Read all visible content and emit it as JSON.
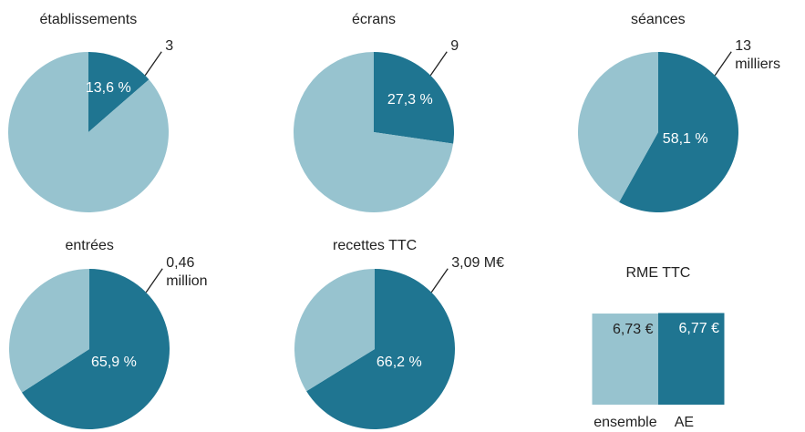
{
  "chart_data": [
    {
      "type": "pie",
      "title": "établissements",
      "values": [
        13.6,
        86.4
      ],
      "value_labels": [
        "13,6 %",
        null
      ],
      "colors": [
        "#1f7591",
        "#97c3cf"
      ],
      "annotation": "3"
    },
    {
      "type": "pie",
      "title": "écrans",
      "values": [
        27.3,
        72.7
      ],
      "value_labels": [
        "27,3 %",
        null
      ],
      "colors": [
        "#1f7591",
        "#97c3cf"
      ],
      "annotation": "9"
    },
    {
      "type": "pie",
      "title": "séances",
      "values": [
        58.1,
        41.9
      ],
      "value_labels": [
        "58,1 %",
        null
      ],
      "colors": [
        "#1f7591",
        "#97c3cf"
      ],
      "annotation": "13\nmilliers"
    },
    {
      "type": "pie",
      "title": "entrées",
      "values": [
        65.9,
        34.1
      ],
      "value_labels": [
        "65,9 %",
        null
      ],
      "colors": [
        "#1f7591",
        "#97c3cf"
      ],
      "annotation": "0,46\nmillion"
    },
    {
      "type": "pie",
      "title": "recettes TTC",
      "values": [
        66.2,
        33.8
      ],
      "value_labels": [
        "66,2 %",
        null
      ],
      "colors": [
        "#1f7591",
        "#97c3cf"
      ],
      "annotation": "3,09 M€"
    },
    {
      "type": "bar",
      "title": "RME TTC",
      "categories": [
        "ensemble",
        "AE"
      ],
      "values": [
        6.73,
        6.77
      ],
      "value_labels": [
        "6,73 €",
        "6,77 €"
      ],
      "colors": [
        "#97c3cf",
        "#1f7591"
      ],
      "ylim": [
        0,
        6.8
      ]
    }
  ]
}
